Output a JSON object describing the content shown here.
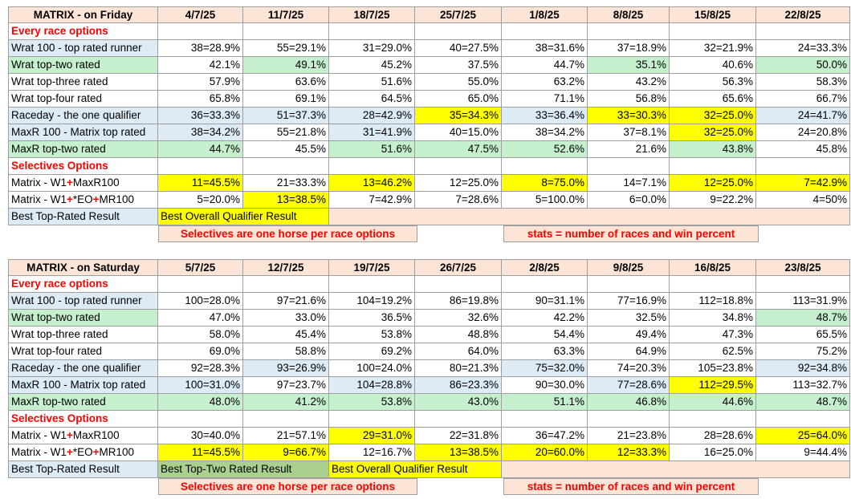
{
  "tables": [
    {
      "title": "MATRIX - on Friday",
      "dates": [
        "4/7/25",
        "11/7/25",
        "18/7/25",
        "25/7/25",
        "1/8/25",
        "8/8/25",
        "15/8/25",
        "22/8/25"
      ],
      "section1": "Every race options",
      "rows1": [
        {
          "label": "Wrat 100 - top rated runner",
          "values": [
            "38=28.9%",
            "55=29.1%",
            "31=29.0%",
            "40=27.5%",
            "38=31.6%",
            "37=18.9%",
            "32=21.9%",
            "24=33.3%"
          ]
        },
        {
          "label": "Wrat top-two rated",
          "values": [
            "42.1%",
            "49.1%",
            "45.2%",
            "37.5%",
            "44.7%",
            "35.1%",
            "40.6%",
            "50.0%"
          ]
        },
        {
          "label": "Wrat top-three rated",
          "values": [
            "57.9%",
            "63.6%",
            "51.6%",
            "55.0%",
            "63.2%",
            "43.2%",
            "56.3%",
            "58.3%"
          ]
        },
        {
          "label": "Wrat top-four rated",
          "values": [
            "65.8%",
            "69.1%",
            "64.5%",
            "65.0%",
            "71.1%",
            "56.8%",
            "65.6%",
            "66.7%"
          ]
        },
        {
          "label": "Raceday - the one qualifier",
          "values": [
            "36=33.3%",
            "51=37.3%",
            "28=42.9%",
            "35=34.3%",
            "33=36.4%",
            "33=30.3%",
            "32=25.0%",
            "24=41.7%"
          ]
        },
        {
          "label": "MaxR 100 - Matrix top rated",
          "values": [
            "38=34.2%",
            "55=21.8%",
            "31=41.9%",
            "40=15.0%",
            "38=34.2%",
            "37=8.1%",
            "32=25.0%",
            "24=20.8%"
          ]
        },
        {
          "label": "MaxR top-two rated",
          "values": [
            "44.7%",
            "45.5%",
            "51.6%",
            "47.5%",
            "52.6%",
            "21.6%",
            "43.8%",
            "45.8%"
          ]
        }
      ],
      "section2": "Selectives Options",
      "rows2": [
        {
          "label_a": "Matrix - W1",
          "label_b": "MaxR100",
          "label_c": "",
          "values": [
            "11=45.5%",
            "21=33.3%",
            "13=46.2%",
            "12=25.0%",
            "8=75.0%",
            "14=7.1%",
            "12=25.0%",
            "7=42.9%"
          ]
        },
        {
          "label_a": "Matrix - W1",
          "label_b": "*EO",
          "label_c": "MR100",
          "values": [
            "5=20.0%",
            "13=38.5%",
            "7=42.9%",
            "7=28.6%",
            "5=100.0%",
            "6=0.0%",
            "9=22.2%",
            "4=50%"
          ]
        }
      ],
      "plus": "+",
      "legend_best_top": "Best Top-Rated Result",
      "legend_best_overall": "Best Overall Qualifier Result",
      "note_left": "Selectives are one horse per race options",
      "note_right": "stats = number of races and win percent"
    },
    {
      "title": "MATRIX - on Saturday",
      "dates": [
        "5/7/25",
        "12/7/25",
        "19/7/25",
        "26/7/25",
        "2/8/25",
        "9/8/25",
        "16/8/25",
        "23/8/25"
      ],
      "section1": "Every race options",
      "rows1": [
        {
          "label": "Wrat 100 - top rated runner",
          "values": [
            "100=28.0%",
            "97=21.6%",
            "104=19.2%",
            "86=19.8%",
            "90=31.1%",
            "77=16.9%",
            "112=18.8%",
            "113=31.9%"
          ]
        },
        {
          "label": "Wrat top-two rated",
          "values": [
            "47.0%",
            "33.0%",
            "36.5%",
            "32.6%",
            "42.2%",
            "32.5%",
            "34.8%",
            "48.7%"
          ]
        },
        {
          "label": "Wrat top-three rated",
          "values": [
            "58.0%",
            "45.4%",
            "53.8%",
            "48.8%",
            "54.4%",
            "49.4%",
            "47.3%",
            "65.5%"
          ]
        },
        {
          "label": "Wrat top-four rated",
          "values": [
            "69.0%",
            "58.8%",
            "69.2%",
            "64.0%",
            "63.3%",
            "64.9%",
            "62.5%",
            "75.2%"
          ]
        },
        {
          "label": "Raceday - the one qualifier",
          "values": [
            "92=28.3%",
            "93=26.9%",
            "100=24.0%",
            "80=21.3%",
            "75=32.0%",
            "74=20.3%",
            "105=23.8%",
            "92=34.8%"
          ]
        },
        {
          "label": "MaxR 100 - Matrix top rated",
          "values": [
            "100=31.0%",
            "97=23.7%",
            "104=28.8%",
            "86=23.3%",
            "90=30.0%",
            "77=28.6%",
            "112=29.5%",
            "113=32.7%"
          ]
        },
        {
          "label": "MaxR top-two rated",
          "values": [
            "48.0%",
            "41.2%",
            "53.8%",
            "43.0%",
            "51.1%",
            "46.8%",
            "44.6%",
            "48.7%"
          ]
        }
      ],
      "section2": "Selectives Options",
      "rows2": [
        {
          "label_a": "Matrix - W1",
          "label_b": "MaxR100",
          "label_c": "",
          "values": [
            "30=40.0%",
            "21=57.1%",
            "29=31.0%",
            "22=31.8%",
            "36=47.2%",
            "21=23.8%",
            "28=28.6%",
            "25=64.0%"
          ]
        },
        {
          "label_a": "Matrix - W1",
          "label_b": "*EO",
          "label_c": "MR100",
          "values": [
            "11=45.5%",
            "9=66.7%",
            "12=16.7%",
            "13=38.5%",
            "20=60.0%",
            "12=33.3%",
            "16=25.0%",
            "9=44.4%"
          ]
        }
      ],
      "plus": "+",
      "legend_best_top": "Best Top-Rated Result",
      "legend_best_top_two": "Best Top-Two Rated Result",
      "legend_best_overall": "Best Overall Qualifier Result",
      "note_left": "Selectives are one horse per race options",
      "note_right": "stats = number of races and win percent"
    }
  ],
  "colors": {
    "header": "#fce4d6",
    "blue": "#ddebf7",
    "green": "#c6efce",
    "yellow": "#ffff00",
    "light_green": "#a9d08e",
    "section_text": "#ff0000"
  }
}
